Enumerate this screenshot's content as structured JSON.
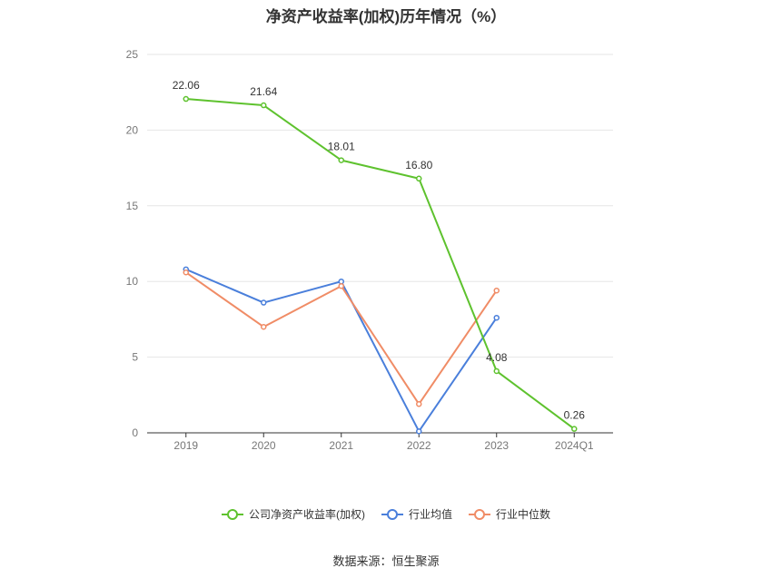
{
  "title": "净资产收益率(加权)历年情况（%）",
  "source": "数据来源：恒生聚源",
  "chart_data": {
    "type": "line",
    "title": "净资产收益率(加权)历年情况（%）",
    "categories": [
      "2019",
      "2020",
      "2021",
      "2022",
      "2023",
      "2024Q1"
    ],
    "ylim": [
      0,
      25
    ],
    "yticks": [
      0,
      5,
      10,
      15,
      20,
      25
    ],
    "grid": true,
    "legend_position": "bottom",
    "series": [
      {
        "name": "公司净资产收益率(加权)",
        "color": "#5ec22e",
        "values": [
          22.06,
          21.64,
          18.01,
          16.8,
          4.08,
          0.26
        ],
        "labels": [
          "22.06",
          "21.64",
          "18.01",
          "16.80",
          "4.08",
          "0.26"
        ]
      },
      {
        "name": "行业均值",
        "color": "#4a7fdb",
        "values": [
          10.8,
          8.6,
          10.0,
          0.1,
          7.6,
          null
        ]
      },
      {
        "name": "行业中位数",
        "color": "#f08c66",
        "values": [
          10.6,
          7.0,
          9.7,
          1.9,
          9.4,
          null
        ]
      }
    ]
  }
}
